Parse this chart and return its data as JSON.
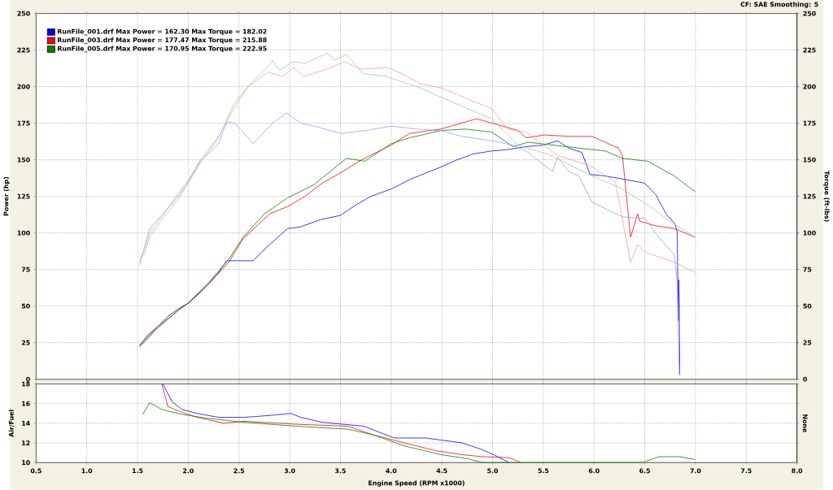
{
  "chart_data": [
    {
      "type": "line",
      "ylabel": "Power (hp)",
      "y2label": "Torque (ft-lbs)",
      "annotations": [
        "CF: SAE  Smoothing: 5"
      ],
      "xlim": [
        0.5,
        8
      ],
      "xticks": [
        {
          "value": 0.5,
          "label": null
        },
        {
          "value": 1,
          "label": null
        },
        {
          "value": 1.5,
          "label": null
        },
        {
          "value": 2,
          "label": null
        },
        {
          "value": 2.5,
          "label": null
        },
        {
          "value": 3,
          "label": null
        },
        {
          "value": 3.5,
          "label": null
        },
        {
          "value": 4,
          "label": null
        },
        {
          "value": 4.5,
          "label": null
        },
        {
          "value": 5,
          "label": null
        },
        {
          "value": 5.5,
          "label": null
        },
        {
          "value": 6,
          "label": null
        },
        {
          "value": 6.5,
          "label": null
        },
        {
          "value": 7,
          "label": null
        },
        {
          "value": 7.5,
          "label": null
        },
        {
          "value": 8,
          "label": null
        }
      ],
      "ylim": [
        0,
        250
      ],
      "yticks": [
        0,
        25,
        50,
        75,
        100,
        125,
        150,
        175,
        200,
        225,
        250
      ],
      "y2lim": [
        0,
        250
      ],
      "y2ticks": [
        0,
        25,
        50,
        75,
        100,
        125,
        150,
        175,
        200,
        225,
        250
      ],
      "grid": true,
      "legend": "top left",
      "tick_labels": "y",
      "series": [
        {
          "name": "RunFile_001.drf Max Power = 162.30 Max Torque = 182.02",
          "color": "#0000ff",
          "x": [
            1.52,
            1.6,
            1.7,
            1.8,
            1.9,
            2.0,
            2.1,
            2.2,
            2.3,
            2.38,
            2.5,
            2.64,
            2.8,
            2.98,
            3.1,
            3.3,
            3.5,
            3.65,
            3.8,
            4.0,
            4.2,
            4.49,
            4.65,
            4.81,
            4.99,
            5.15,
            5.33,
            5.5,
            5.64,
            5.75,
            5.88,
            5.96,
            6.1,
            6.27,
            6.5,
            6.61,
            6.71,
            6.8,
            6.82,
            6.83,
            6.835,
            6.84,
            6.845
          ],
          "values": [
            23,
            30,
            36,
            43,
            48,
            52,
            58,
            65,
            73,
            81,
            81,
            81,
            92,
            103,
            104,
            109,
            112,
            119,
            125,
            130,
            137,
            145,
            150,
            154,
            156,
            157,
            159,
            160,
            163,
            158,
            155,
            140,
            139,
            137,
            134,
            126,
            113,
            106,
            100,
            40,
            68,
            50,
            3
          ]
        },
        {
          "name": "RunFile_003.drf Max Power = 177.47 Max Torque = 215.88",
          "color": "#ff0000",
          "x": [
            1.52,
            1.7,
            1.9,
            2.0,
            2.2,
            2.4,
            2.54,
            2.8,
            2.98,
            3.15,
            3.32,
            3.5,
            3.71,
            4.0,
            4.18,
            4.49,
            4.84,
            5.0,
            5.25,
            5.33,
            5.51,
            5.75,
            5.98,
            6.24,
            6.28,
            6.36,
            6.43,
            6.45,
            6.6,
            6.79,
            7.0
          ],
          "values": [
            23,
            36,
            47,
            52,
            65,
            80,
            96,
            113,
            118,
            125,
            134,
            141,
            150,
            160,
            168,
            171,
            178,
            175,
            170,
            165,
            167,
            166,
            166,
            158,
            153,
            97,
            113,
            108,
            105,
            103,
            97
          ]
        },
        {
          "name": "RunFile_005.drf Max Power = 170.95 Max Torque = 222.95",
          "color": "#008000",
          "x": [
            1.52,
            1.7,
            1.9,
            2.0,
            2.2,
            2.4,
            2.54,
            2.75,
            2.98,
            3.24,
            3.56,
            3.74,
            4.0,
            4.18,
            4.49,
            4.73,
            4.99,
            5.2,
            5.35,
            5.6,
            5.85,
            6.11,
            6.28,
            6.53,
            6.79,
            7.0
          ],
          "values": [
            22,
            35,
            47,
            52,
            66,
            82,
            97,
            113,
            124,
            133,
            151,
            149,
            161,
            165,
            170,
            171,
            169,
            159,
            162,
            160,
            158,
            156,
            151,
            149,
            139,
            128
          ]
        },
        {
          "color": "#9999ff",
          "axis": "y2",
          "x": [
            1.52,
            1.62,
            1.75,
            1.89,
            2.0,
            2.12,
            2.3,
            2.38,
            2.46,
            2.64,
            2.83,
            2.97,
            3.11,
            3.3,
            3.5,
            3.75,
            4.0,
            4.25,
            4.49,
            4.7,
            4.99,
            5.2,
            5.33,
            5.46,
            5.59,
            5.64,
            5.75,
            5.85,
            5.98,
            6.1,
            6.28,
            6.5,
            6.64,
            6.79,
            6.82,
            6.84
          ],
          "values": [
            78,
            103,
            113,
            124,
            135,
            149,
            161,
            176,
            175,
            161,
            175,
            182,
            175,
            172,
            168,
            170,
            173,
            171,
            170,
            166,
            163,
            160,
            156,
            149,
            142,
            152,
            142,
            139,
            121,
            117,
            111,
            110,
            97,
            85,
            67,
            3
          ]
        },
        {
          "color": "#ff9999",
          "axis": "y2",
          "x": [
            1.52,
            1.62,
            1.75,
            1.89,
            2.0,
            2.12,
            2.3,
            2.45,
            2.59,
            2.79,
            2.93,
            3.04,
            3.14,
            3.37,
            3.54,
            3.7,
            3.97,
            4.1,
            4.29,
            4.5,
            4.81,
            4.99,
            5.15,
            5.33,
            5.64,
            5.96,
            6.21,
            6.36,
            6.43,
            6.5,
            6.79,
            7.0
          ],
          "values": [
            80,
            100,
            112,
            126,
            136,
            150,
            166,
            185,
            200,
            210,
            207,
            213,
            207,
            212,
            217,
            212,
            213,
            209,
            202,
            199,
            190,
            185,
            171,
            169,
            153,
            146,
            135,
            80,
            92,
            87,
            80,
            73
          ]
        },
        {
          "color": "#99cc99",
          "axis": "y2",
          "x": [
            1.52,
            1.56,
            1.62,
            1.75,
            1.89,
            2.0,
            2.12,
            2.3,
            2.45,
            2.59,
            2.75,
            2.83,
            2.9,
            3.03,
            3.16,
            3.37,
            3.44,
            3.56,
            3.72,
            3.95,
            4.29,
            4.55,
            4.99,
            5.25,
            5.54,
            5.98,
            6.28,
            6.53,
            6.79,
            7.0
          ],
          "values": [
            82,
            85,
            97,
            110,
            122,
            134,
            148,
            165,
            188,
            200,
            211,
            218,
            211,
            217,
            216,
            223,
            218,
            222,
            209,
            207,
            199,
            191,
            178,
            160,
            154,
            139,
            130,
            119,
            106,
            97
          ]
        }
      ]
    },
    {
      "type": "line",
      "xlabel": "Engine Speed (RPM x1000)",
      "ylabel": "Air/Fuel",
      "y2label": "None",
      "xlim": [
        0.5,
        8
      ],
      "xticks": [
        {
          "value": 0.5,
          "label": "0.5"
        },
        {
          "value": 1,
          "label": "1.0"
        },
        {
          "value": 1.5,
          "label": "1.5"
        },
        {
          "value": 2,
          "label": "2.0"
        },
        {
          "value": 2.5,
          "label": "2.5"
        },
        {
          "value": 3,
          "label": "3.0"
        },
        {
          "value": 3.5,
          "label": "3.5"
        },
        {
          "value": 4,
          "label": "4.0"
        },
        {
          "value": 4.5,
          "label": "4.5"
        },
        {
          "value": 5,
          "label": "5.0"
        },
        {
          "value": 5.5,
          "label": "5.5"
        },
        {
          "value": 6,
          "label": "6.0"
        },
        {
          "value": 6.5,
          "label": "6.5"
        },
        {
          "value": 7,
          "label": "7.0"
        },
        {
          "value": 7.5,
          "label": "7.5"
        },
        {
          "value": 8,
          "label": "8.0"
        }
      ],
      "ylim": [
        10,
        18
      ],
      "yticks": [
        10,
        12,
        14,
        16,
        18
      ],
      "grid": true,
      "series": [
        {
          "color": "#0000ff",
          "x": [
            1.75,
            1.84,
            1.94,
            2.09,
            2.3,
            2.55,
            2.81,
            3.01,
            3.11,
            3.32,
            3.73,
            4.03,
            4.34,
            4.7,
            4.9,
            5.03,
            5.16
          ],
          "values": [
            18,
            16.2,
            15.4,
            15.0,
            14.6,
            14.6,
            14.8,
            15.0,
            14.6,
            14.1,
            13.7,
            12.5,
            12.5,
            12.0,
            11.3,
            10.7,
            10
          ]
        },
        {
          "color": "#ff0000",
          "x": [
            1.74,
            1.8,
            1.94,
            2.09,
            2.35,
            2.55,
            3.06,
            3.57,
            3.83,
            4.13,
            4.44,
            4.7,
            4.9,
            5.16,
            5.28
          ],
          "values": [
            18,
            15.7,
            15.1,
            14.6,
            14.0,
            14.2,
            13.9,
            13.7,
            12.8,
            12.0,
            11.2,
            10.8,
            10.6,
            10.5,
            10
          ]
        },
        {
          "color": "#008000",
          "x": [
            1.55,
            1.62,
            1.74,
            1.94,
            2.19,
            2.55,
            3.06,
            3.57,
            3.83,
            4.13,
            4.49,
            4.75,
            4.9,
            6.48,
            6.64,
            6.84,
            7.0
          ],
          "values": [
            14.9,
            16.1,
            15.4,
            14.9,
            14.5,
            14.1,
            13.7,
            13.4,
            12.8,
            11.7,
            10.8,
            10.4,
            10,
            10,
            10.6,
            10.6,
            10.3
          ]
        }
      ]
    }
  ]
}
